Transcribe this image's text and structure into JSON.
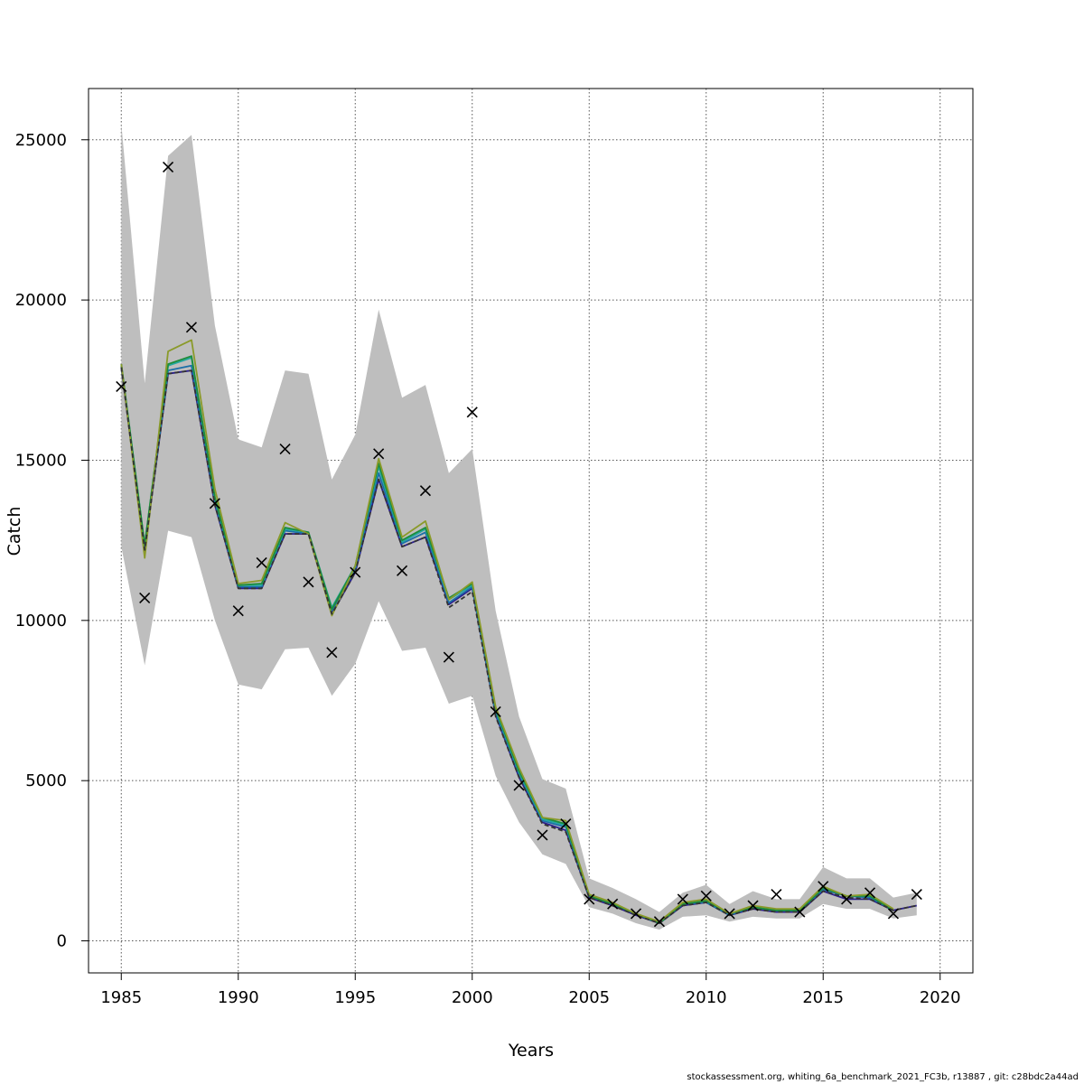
{
  "chart_data": {
    "type": "line",
    "title": "",
    "xlabel": "Years",
    "ylabel": "Catch",
    "xlim": [
      1983.6,
      2021.4
    ],
    "ylim": [
      -1000,
      26600
    ],
    "x_ticks": [
      1985,
      1990,
      1995,
      2000,
      2005,
      2010,
      2015,
      2020
    ],
    "y_ticks": [
      0,
      5000,
      10000,
      15000,
      20000,
      25000
    ],
    "grid": true,
    "band_color": "#bebebe",
    "x": [
      1985,
      1986,
      1987,
      1988,
      1989,
      1990,
      1991,
      1992,
      1993,
      1994,
      1995,
      1996,
      1997,
      1998,
      1999,
      2000,
      2001,
      2002,
      2003,
      2004,
      2005,
      2006,
      2007,
      2008,
      2009,
      2010,
      2011,
      2012,
      2013,
      2014,
      2015,
      2016,
      2017,
      2018,
      2019
    ],
    "band": {
      "upper": [
        25500,
        17400,
        24500,
        25150,
        19200,
        15650,
        15400,
        17800,
        17700,
        14400,
        15800,
        19700,
        16950,
        17350,
        14600,
        15350,
        10300,
        7000,
        5050,
        4750,
        1950,
        1650,
        1300,
        900,
        1500,
        1750,
        1150,
        1550,
        1300,
        1300,
        2300,
        1950,
        1950,
        1350,
        1500
      ],
      "lower": [
        12300,
        8600,
        12800,
        12600,
        10000,
        8000,
        7850,
        9100,
        9150,
        7650,
        8650,
        10600,
        9050,
        9150,
        7400,
        7650,
        5150,
        3700,
        2700,
        2400,
        1050,
        850,
        550,
        350,
        750,
        800,
        600,
        750,
        700,
        700,
        1150,
        1000,
        1000,
        700,
        800
      ]
    },
    "points": [
      17300,
      10700,
      24150,
      19150,
      13650,
      10300,
      11800,
      15350,
      11200,
      9000,
      11500,
      15200,
      11550,
      14050,
      8850,
      16500,
      7150,
      4850,
      3300,
      3650,
      1300,
      1150,
      850,
      600,
      1300,
      1400,
      850,
      1100,
      1450,
      900,
      1700,
      1300,
      1500,
      850,
      1450
    ],
    "series": [
      {
        "color": "#333333",
        "dash": true,
        "values": [
          17900,
          12200,
          17700,
          17800,
          13600,
          11000,
          11000,
          12700,
          12700,
          10200,
          11500,
          14400,
          12300,
          12600,
          10400,
          10900,
          7000,
          5100,
          3650,
          3400,
          1350,
          1100,
          800,
          550,
          1100,
          1200,
          800,
          1000,
          900,
          900,
          1550,
          1350,
          1300,
          950,
          1100
        ]
      },
      {
        "color": "#2b1e8c",
        "dash": false,
        "values": [
          17900,
          12200,
          17700,
          17800,
          13600,
          11000,
          11000,
          12700,
          12700,
          10200,
          11500,
          14400,
          12300,
          12600,
          10500,
          11000,
          7050,
          5100,
          3700,
          3450,
          1350,
          1100,
          800,
          550,
          1100,
          1200,
          800,
          1000,
          900,
          900,
          1550,
          1300,
          1300,
          950,
          1100
        ]
      },
      {
        "color": "#1a6fa8",
        "dash": false,
        "values": [
          17950,
          12300,
          17800,
          17950,
          13700,
          11050,
          11050,
          12800,
          12700,
          10300,
          11600,
          14600,
          12400,
          12750,
          10550,
          11050,
          7100,
          5200,
          3750,
          3550,
          1400,
          1150,
          850,
          550,
          1150,
          1200,
          800,
          1050,
          950,
          950,
          1600,
          1400,
          1350,
          950,
          null
        ]
      },
      {
        "color": "#22a8a0",
        "dash": false,
        "values": [
          18000,
          12350,
          17950,
          18200,
          13800,
          11100,
          11100,
          12850,
          12750,
          10400,
          11700,
          14800,
          12450,
          12850,
          10650,
          11100,
          7200,
          5250,
          3800,
          3600,
          1400,
          1150,
          850,
          550,
          1150,
          1250,
          850,
          1050,
          950,
          950,
          1650,
          1400,
          1400,
          950,
          null
        ]
      },
      {
        "color": "#1e8c3a",
        "dash": false,
        "values": [
          18000,
          12350,
          18000,
          18250,
          13850,
          11100,
          11150,
          12900,
          12750,
          10350,
          11700,
          14900,
          12500,
          12900,
          10700,
          11150,
          7250,
          5300,
          3850,
          3650,
          1400,
          1150,
          850,
          550,
          1150,
          1250,
          850,
          1050,
          950,
          950,
          1650,
          1400,
          1400,
          950,
          null
        ]
      },
      {
        "color": "#8a9a2a",
        "dash": false,
        "values": [
          18000,
          11950,
          18400,
          18750,
          14100,
          11150,
          11250,
          13050,
          12700,
          10150,
          11700,
          15050,
          12600,
          13100,
          10650,
          11200,
          7300,
          5400,
          3850,
          3750,
          1450,
          1200,
          850,
          600,
          1200,
          1300,
          850,
          1100,
          1000,
          1000,
          1700,
          1400,
          1450,
          1000,
          null
        ]
      }
    ]
  },
  "footer": "stockassessment.org, whiting_6a_benchmark_2021_FC3b, r13887 , git: c28bdc2a44ad"
}
